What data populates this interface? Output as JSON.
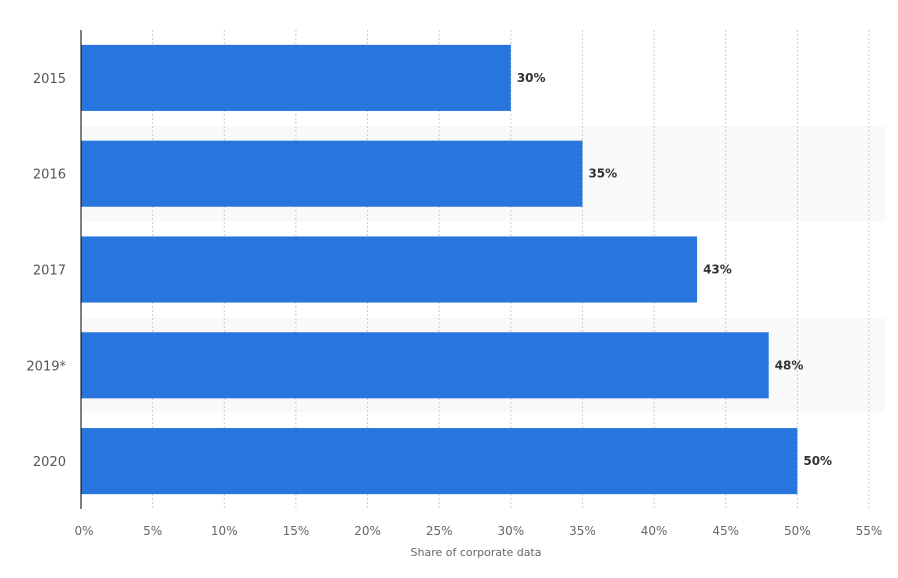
{
  "chart_data": {
    "type": "bar",
    "orientation": "horizontal",
    "categories": [
      "2015",
      "2016",
      "2017",
      "2019*",
      "2020"
    ],
    "values": [
      30,
      35,
      43,
      48,
      50
    ],
    "data_labels": [
      "30%",
      "35%",
      "43%",
      "48%",
      "50%"
    ],
    "title": "",
    "xlabel": "Share of corporate data",
    "ylabel": "",
    "xlim": [
      0,
      55
    ],
    "xticks": [
      0,
      5,
      10,
      15,
      20,
      25,
      30,
      35,
      40,
      45,
      50,
      55
    ],
    "xtick_labels": [
      "0%",
      "5%",
      "10%",
      "15%",
      "20%",
      "25%",
      "30%",
      "35%",
      "40%",
      "45%",
      "50%",
      "55%"
    ],
    "grid": "vertical dotted",
    "legend": "none",
    "colors": {
      "bar": "#2876dd",
      "band": "#f9f9f9",
      "grid": "#cccccc"
    }
  }
}
